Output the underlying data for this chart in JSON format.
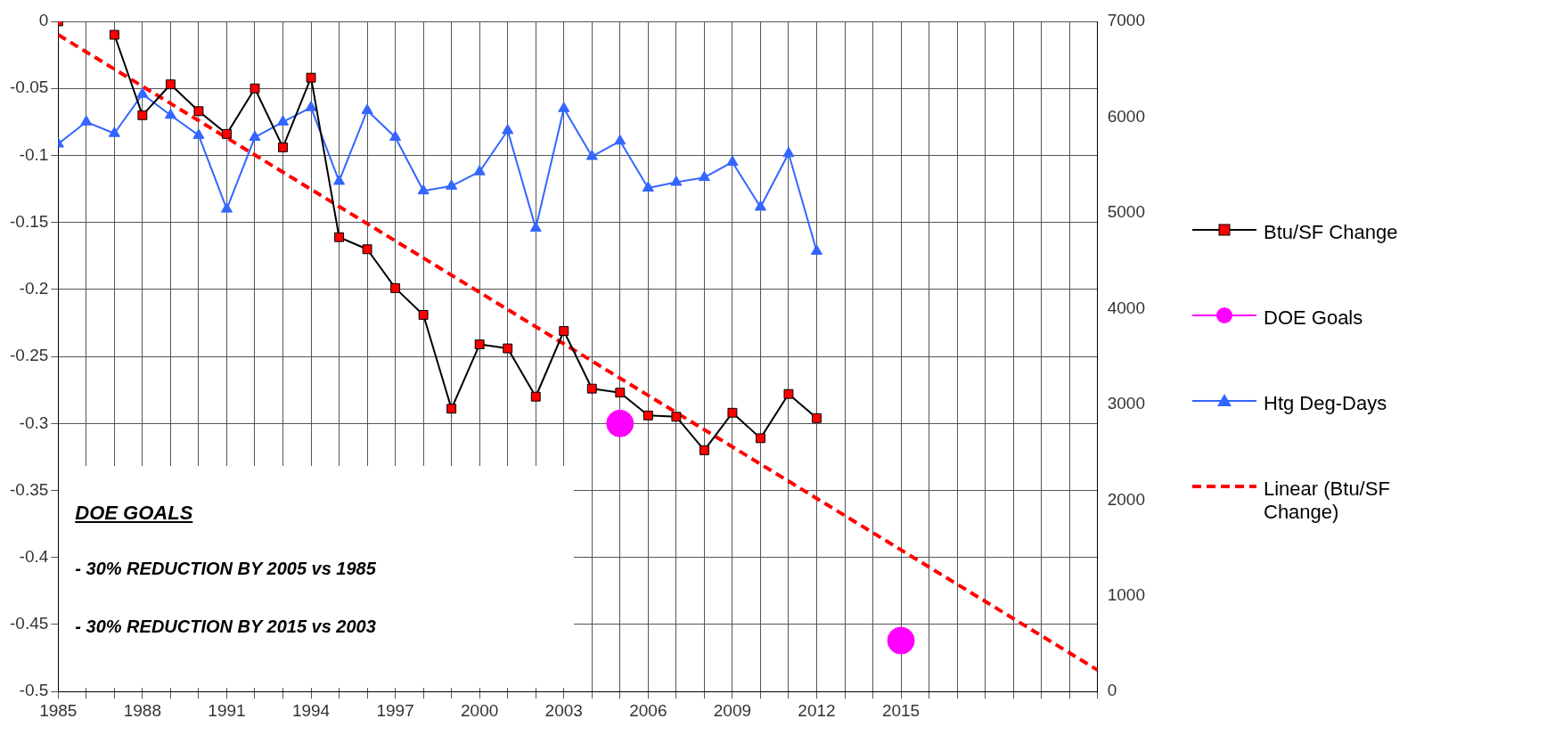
{
  "chart_data": {
    "type": "line",
    "xlim": [
      1985,
      2022
    ],
    "xticks": [
      1985,
      {
        "value": 1986,
        "label": null
      },
      {
        "value": 1987,
        "label": null
      },
      1988,
      {
        "value": 1989,
        "label": null
      },
      {
        "value": 1990,
        "label": null
      },
      1991,
      {
        "value": 1992,
        "label": null
      },
      {
        "value": 1993,
        "label": null
      },
      1994,
      {
        "value": 1995,
        "label": null
      },
      {
        "value": 1996,
        "label": null
      },
      1997,
      {
        "value": 1998,
        "label": null
      },
      {
        "value": 1999,
        "label": null
      },
      2000,
      {
        "value": 2001,
        "label": null
      },
      {
        "value": 2002,
        "label": null
      },
      2003,
      {
        "value": 2004,
        "label": null
      },
      {
        "value": 2005,
        "label": null
      },
      2006,
      {
        "value": 2007,
        "label": null
      },
      {
        "value": 2008,
        "label": null
      },
      2009,
      {
        "value": 2010,
        "label": null
      },
      {
        "value": 2011,
        "label": null
      },
      2012,
      {
        "value": 2013,
        "label": null
      },
      {
        "value": 2014,
        "label": null
      },
      2015,
      {
        "value": 2016,
        "label": null
      },
      {
        "value": 2017,
        "label": null
      },
      {
        "value": 2018,
        "label": null
      },
      {
        "value": 2019,
        "label": null
      },
      {
        "value": 2020,
        "label": null
      },
      {
        "value": 2021,
        "label": null
      },
      {
        "value": 2022,
        "label": null
      }
    ],
    "ylim": [
      -0.5,
      0
    ],
    "yticks": [
      -0.5,
      -0.45,
      -0.4,
      -0.35,
      -0.3,
      -0.25,
      -0.2,
      -0.15,
      -0.1,
      -0.05,
      0
    ],
    "y2lim": [
      0,
      7000
    ],
    "y2ticks": [
      0,
      1000,
      2000,
      3000,
      4000,
      5000,
      6000,
      7000
    ],
    "grid": true,
    "legend": "right",
    "x": [
      1985,
      1986,
      1987,
      1988,
      1989,
      1990,
      1991,
      1992,
      1993,
      1994,
      1995,
      1996,
      1997,
      1998,
      1999,
      2000,
      2001,
      2002,
      2003,
      2004,
      2005,
      2006,
      2007,
      2008,
      2009,
      2010,
      2011,
      2012
    ],
    "series": [
      {
        "name": "Btu/SF Change",
        "color": "#000000",
        "marker": "square",
        "colors": [
          "#ff0000",
          "#ff0000",
          "#ff0000",
          "#ff0000",
          "#ff0000",
          "#ff0000",
          "#ff0000",
          "#ff0000",
          "#ff0000",
          "#ff0000",
          "#ff0000",
          "#ff0000",
          "#ff0000",
          "#ff0000",
          "#ff0000",
          "#ff0000",
          "#ff0000",
          "#ff0000",
          "#ff0000",
          "#ff0000",
          "#ff0000",
          "#ff0000",
          "#ff0000",
          "#ff0000",
          "#ff0000",
          "#ff0000",
          "#ff0000",
          "#ff0000"
        ],
        "values": [
          0,
          null,
          -0.01,
          -0.07,
          -0.047,
          -0.067,
          -0.084,
          -0.05,
          -0.094,
          -0.042,
          -0.161,
          -0.17,
          -0.199,
          -0.219,
          -0.289,
          -0.241,
          -0.244,
          -0.28,
          -0.231,
          -0.274,
          -0.277,
          -0.294,
          -0.295,
          -0.32,
          -0.292,
          -0.311,
          -0.278,
          -0.296
        ]
      },
      {
        "name": "DOE Goals",
        "type": "scatter",
        "color": "#ff00ff",
        "marker": "circle",
        "x": [
          2005,
          2015
        ],
        "values": [
          -0.3,
          -0.462
        ]
      },
      {
        "name": "Htg Deg-Days",
        "axis": "y2",
        "color": "#3366ff",
        "marker": "triangle",
        "values": [
          5720,
          5950,
          5830,
          6240,
          6020,
          5810,
          5040,
          5790,
          5950,
          6100,
          5330,
          6070,
          5790,
          5230,
          5280,
          5430,
          5860,
          4840,
          6090,
          5590,
          5750,
          5260,
          5320,
          5370,
          5530,
          5060,
          5620,
          4600
        ]
      },
      {
        "name": "Linear (Btu/SF Change)",
        "color": "#ff0000",
        "marker": "none",
        "line_style": "dashed",
        "x": [
          1985,
          2022
        ],
        "values": [
          -0.01,
          -0.484
        ]
      }
    ],
    "annotations": [
      "DOE GOALS",
      "- 30% REDUCTION BY 2005 vs 1985",
      "- 30% REDUCTION BY 2015 vs 2003"
    ]
  }
}
